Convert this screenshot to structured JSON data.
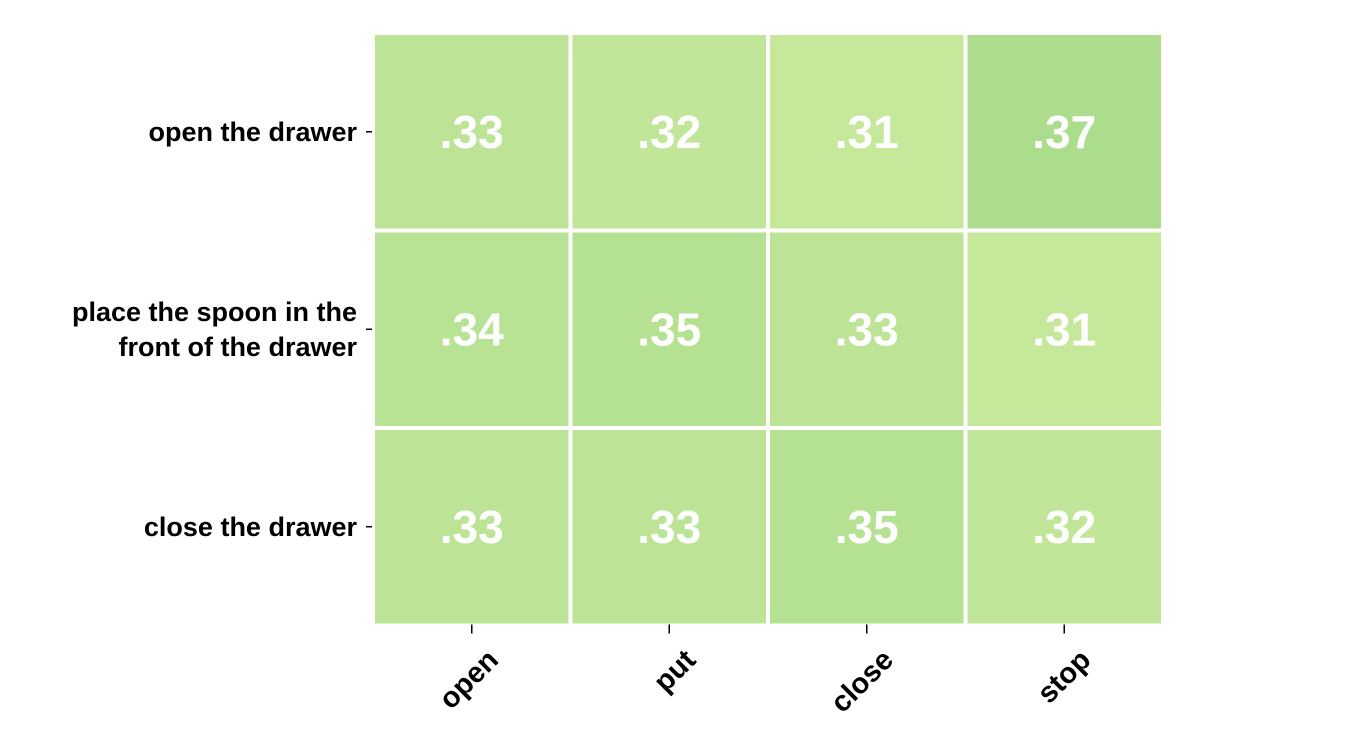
{
  "chart_data": {
    "type": "heatmap",
    "rows": [
      "open the drawer",
      [
        "place the spoon in the",
        "front of the drawer"
      ],
      "close the drawer"
    ],
    "columns": [
      "open",
      "put",
      "close",
      "stop"
    ],
    "values": [
      [
        0.33,
        0.32,
        0.31,
        0.37
      ],
      [
        0.34,
        0.35,
        0.33,
        0.31
      ],
      [
        0.33,
        0.33,
        0.35,
        0.32
      ]
    ],
    "value_labels": [
      [
        ".33",
        ".32",
        ".31",
        ".37"
      ],
      [
        ".34",
        ".35",
        ".33",
        ".31"
      ],
      [
        ".33",
        ".33",
        ".35",
        ".32"
      ]
    ],
    "colormap": {
      "low": "#c6e89b",
      "high": "#acdd8d"
    },
    "vmin": 0.31,
    "vmax": 0.37,
    "cell_border_color": "#ffffff",
    "label_color": "#000000",
    "value_label_color": "#ffffff"
  }
}
